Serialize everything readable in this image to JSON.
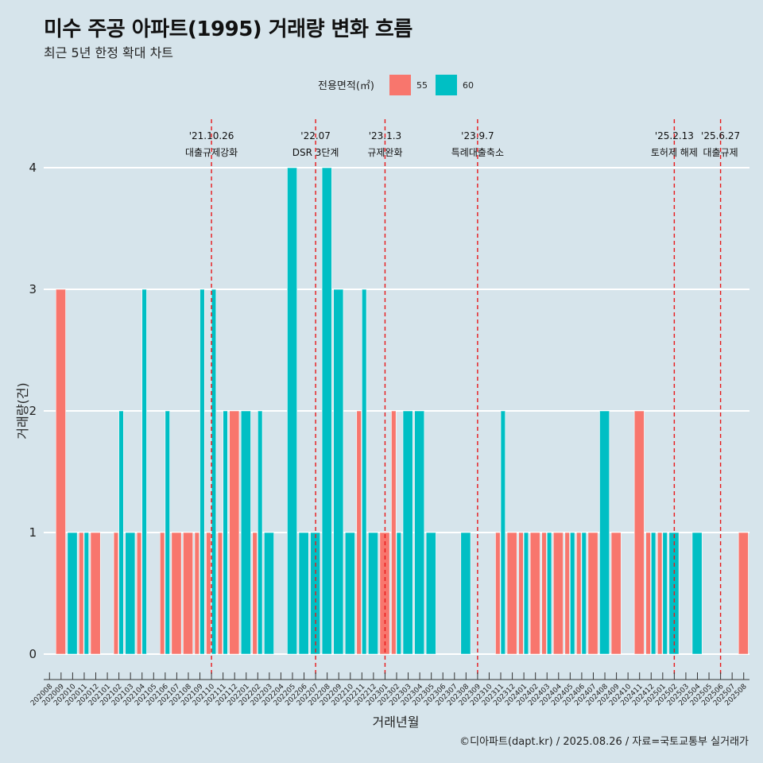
{
  "title": "미수 주공 아파트(1995) 거래량 변화 흐름",
  "subtitle": "최근 5년 한정 확대 차트",
  "caption": "©디아파트(dapt.kr) / 2025.08.26 / 자료=국토교통부 실거래가",
  "chart_data": {
    "type": "bar",
    "xlabel": "거래년월",
    "ylabel": "거래량(건)",
    "ylim": [
      0,
      4
    ],
    "yticks": [
      0,
      1,
      2,
      3,
      4
    ],
    "grid": true,
    "legend": {
      "title": "전용면적(㎡)",
      "placement": "top",
      "entries": [
        "55",
        "60"
      ]
    },
    "colors": {
      "55": "#F8766D",
      "60": "#00BFC4"
    },
    "categories": [
      "202008",
      "202009",
      "202010",
      "202011",
      "202012",
      "202101",
      "202102",
      "202103",
      "202104",
      "202105",
      "202106",
      "202107",
      "202108",
      "202109",
      "202110",
      "202111",
      "202112",
      "202201",
      "202202",
      "202203",
      "202204",
      "202205",
      "202206",
      "202207",
      "202208",
      "202209",
      "202210",
      "202211",
      "202212",
      "202301",
      "202302",
      "202303",
      "202304",
      "202305",
      "202306",
      "202307",
      "202308",
      "202309",
      "202310",
      "202311",
      "202312",
      "202401",
      "202402",
      "202403",
      "202404",
      "202405",
      "202406",
      "202407",
      "202408",
      "202409",
      "202410",
      "202411",
      "202412",
      "202501",
      "202502",
      "202503",
      "202504",
      "202505",
      "202506",
      "202507",
      "202508"
    ],
    "series": [
      {
        "name": "55",
        "values": [
          0,
          3,
          0,
          1,
          1,
          0,
          1,
          0,
          1,
          0,
          1,
          1,
          1,
          1,
          1,
          1,
          2,
          0,
          1,
          0,
          0,
          0,
          0,
          0,
          0,
          0,
          0,
          2,
          0,
          1,
          2,
          0,
          0,
          0,
          0,
          0,
          0,
          0,
          0,
          1,
          1,
          1,
          1,
          1,
          1,
          1,
          1,
          1,
          0,
          1,
          0,
          2,
          1,
          1,
          0,
          0,
          0,
          0,
          0,
          0,
          1
        ]
      },
      {
        "name": "60",
        "values": [
          0,
          0,
          1,
          1,
          0,
          0,
          2,
          1,
          3,
          0,
          2,
          0,
          0,
          3,
          3,
          2,
          0,
          2,
          2,
          1,
          0,
          4,
          1,
          1,
          4,
          3,
          1,
          3,
          1,
          0,
          1,
          2,
          2,
          1,
          0,
          0,
          1,
          0,
          0,
          2,
          0,
          1,
          0,
          1,
          0,
          1,
          1,
          0,
          2,
          0,
          0,
          0,
          1,
          1,
          1,
          0,
          1,
          0,
          0,
          0,
          0
        ]
      }
    ],
    "annotations": [
      {
        "date": "'21.10.26",
        "label": "대출규제강화",
        "category": "202110"
      },
      {
        "date": "'22.07",
        "label": "DSR 3단계",
        "category": "202207"
      },
      {
        "date": "'23.1.3",
        "label": "규제완화",
        "category": "202301"
      },
      {
        "date": "'23.9.7",
        "label": "특례대출축소",
        "category": "202309"
      },
      {
        "date": "'25.2.13",
        "label": "토허제 해제",
        "category": "202502"
      },
      {
        "date": "'25.6.27",
        "label": "대출규제",
        "category": "202506"
      }
    ]
  }
}
